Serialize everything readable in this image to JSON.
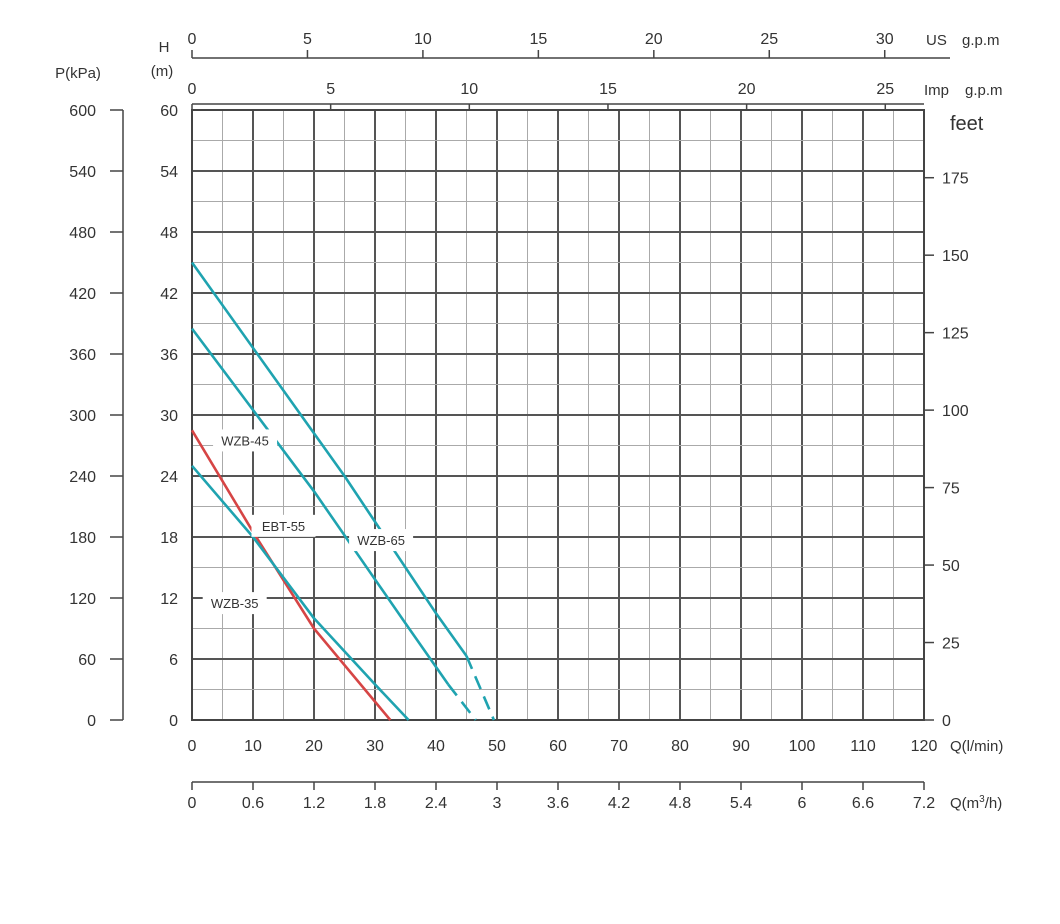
{
  "chart_data": {
    "type": "line",
    "axes": {
      "bottom": {
        "label": "Q(l/min)",
        "range": [
          0,
          120
        ],
        "ticks": [
          0,
          10,
          20,
          30,
          40,
          50,
          60,
          70,
          80,
          90,
          100,
          110,
          120
        ]
      },
      "bottom2": {
        "label_main": "Q(m",
        "label_sup": "3",
        "label_end": "/h)",
        "range": [
          0,
          7.2
        ],
        "ticks": [
          "0",
          "0.6",
          "1.2",
          "1.8",
          "2.4",
          "3",
          "3.6",
          "4.2",
          "4.8",
          "5.4",
          "6",
          "6.6",
          "7.2"
        ]
      },
      "left": {
        "label_top": "H",
        "label_unit": "(m)",
        "range": [
          0,
          60
        ],
        "ticks": [
          0,
          6,
          12,
          18,
          24,
          30,
          36,
          42,
          48,
          54,
          60
        ]
      },
      "left2": {
        "label": "P(kPa)",
        "range": [
          0,
          600
        ],
        "ticks": [
          0,
          60,
          120,
          180,
          240,
          300,
          360,
          420,
          480,
          540,
          600
        ]
      },
      "right": {
        "label": "feet",
        "ticks": [
          0,
          25,
          50,
          75,
          100,
          125,
          150,
          175
        ]
      },
      "top_us": {
        "label_a": "US",
        "label_b": "g.p.m",
        "ticks": [
          0,
          5,
          10,
          15,
          20,
          25,
          30
        ]
      },
      "top_imp": {
        "label_a": "Imp",
        "label_b": "g.p.m",
        "ticks": [
          0,
          5,
          10,
          15,
          20,
          25
        ]
      }
    },
    "grid": true,
    "series": [
      {
        "name": "WZB-65",
        "color": "#1fa3b0",
        "points": [
          [
            0,
            45
          ],
          [
            25,
            24
          ],
          [
            40,
            10.5
          ],
          [
            45,
            6.3
          ]
        ],
        "dashed_points": [
          [
            45,
            6.3
          ],
          [
            49.5,
            0
          ]
        ]
      },
      {
        "name": "WZB-45",
        "color": "#1fa3b0",
        "points": [
          [
            0,
            38.5
          ],
          [
            20,
            22.5
          ],
          [
            35,
            9.5
          ],
          [
            42,
            3.5
          ]
        ],
        "dashed_points": [
          [
            42,
            3.5
          ],
          [
            46.5,
            0
          ]
        ]
      },
      {
        "name": "EBT-55",
        "color": "#d64545",
        "points": [
          [
            0,
            28.5
          ],
          [
            10,
            18.5
          ],
          [
            20,
            9
          ],
          [
            32.5,
            0
          ]
        ],
        "dashed_points": []
      },
      {
        "name": "WZB-35",
        "color": "#1fa3b0",
        "points": [
          [
            0,
            25
          ],
          [
            10,
            18
          ],
          [
            20,
            10
          ],
          [
            30,
            3.5
          ],
          [
            35.5,
            0
          ]
        ],
        "dashed_points": []
      }
    ],
    "labels": [
      {
        "text": "WZB-45",
        "x": 8.7,
        "y": 27.4
      },
      {
        "text": "EBT-55",
        "x": 15.0,
        "y": 19.0
      },
      {
        "text": "WZB-65",
        "x": 31.0,
        "y": 17.6
      },
      {
        "text": "WZB-35",
        "x": 7.0,
        "y": 11.4
      }
    ]
  }
}
